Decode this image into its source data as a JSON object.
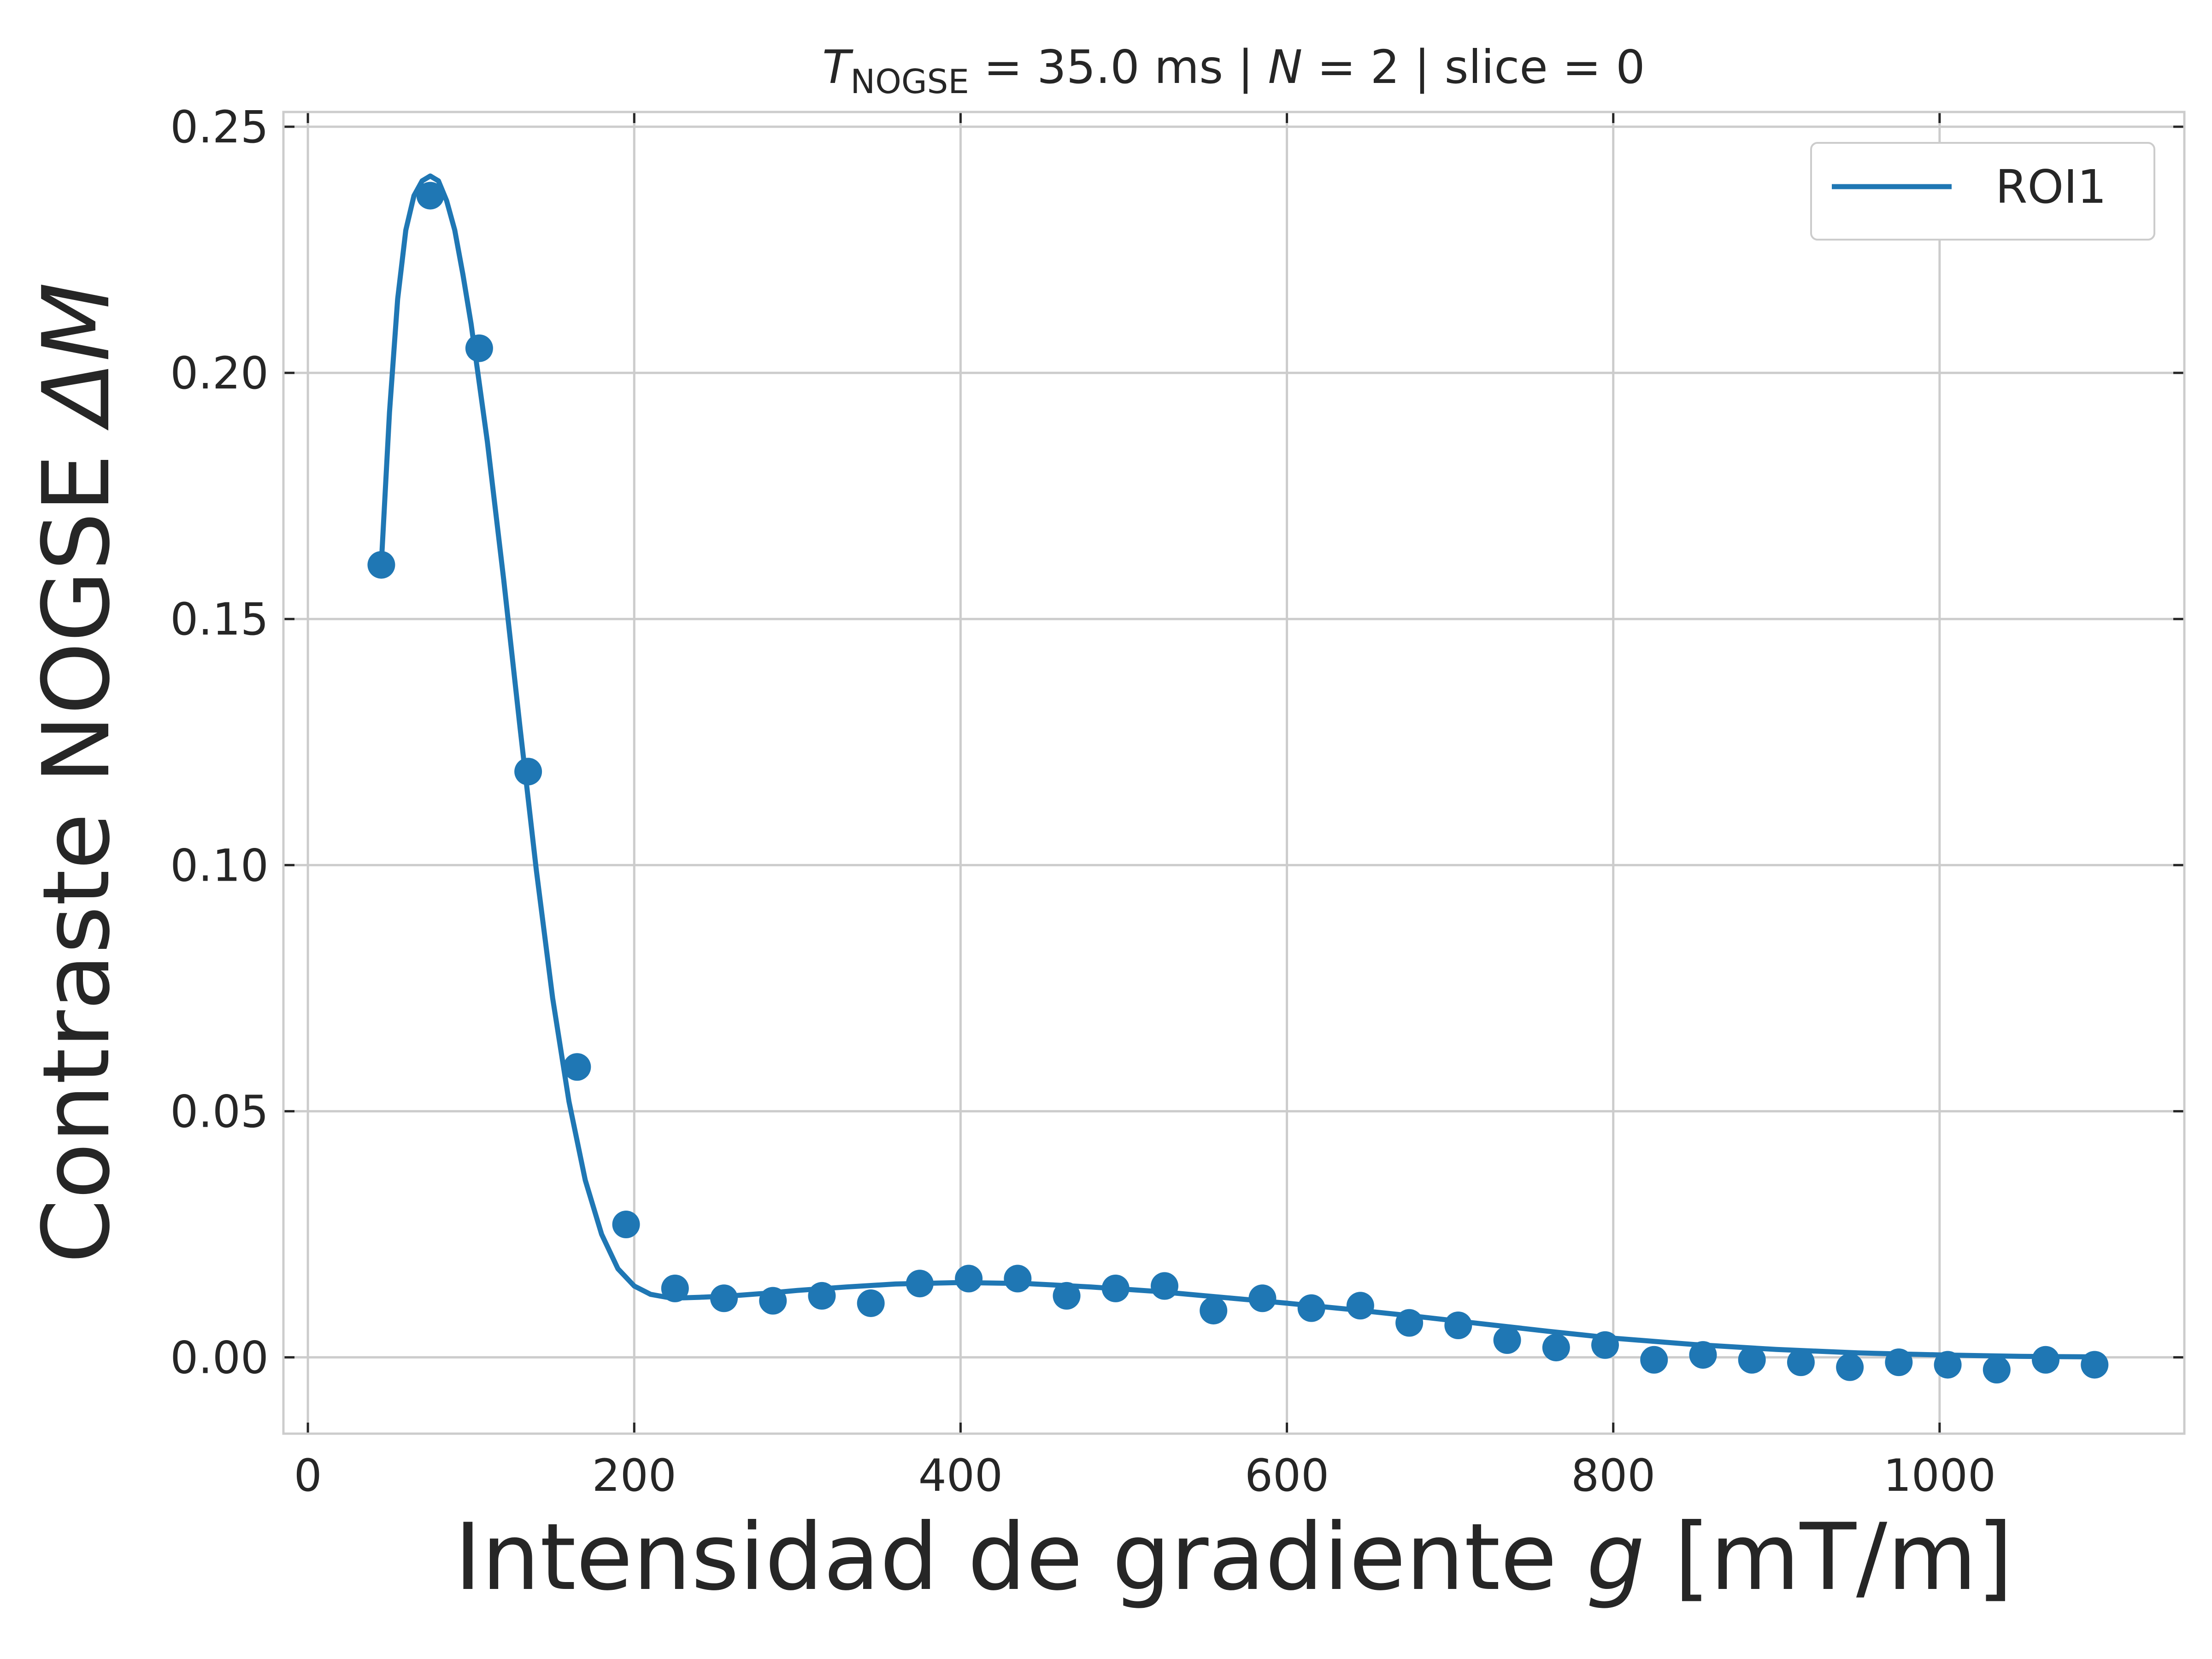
{
  "chart_data": {
    "type": "scatter",
    "title_main": "T",
    "title_sub": "NOGSE",
    "title_rest": " = 35.0 ms | ",
    "title_n": "N",
    "title_tail": " = 2 | slice = 0",
    "xlabel": "Intensidad de gradiente ",
    "xlabel_var": "g",
    "xlabel_unit": " [mT/m]",
    "ylabel": "Contraste NOGSE ",
    "ylabel_var": "ΔM",
    "xlim": [
      -15,
      1150
    ],
    "ylim": [
      -0.0155,
      0.253
    ],
    "xticks": [
      0,
      200,
      400,
      600,
      800,
      1000
    ],
    "xtick_labels": [
      "0",
      "200",
      "400",
      "600",
      "800",
      "1000"
    ],
    "yticks": [
      0,
      0.05,
      0.1,
      0.15,
      0.2,
      0.25
    ],
    "ytick_labels": [
      "0.00",
      "0.05",
      "0.10",
      "0.15",
      "0.20",
      "0.25"
    ],
    "grid": true,
    "legend_position": "top-right",
    "color": "#1f77b4",
    "series": [
      {
        "name": "ROI1",
        "kind": "line",
        "x": [
          45,
          50,
          55,
          60,
          65,
          70,
          75,
          80,
          85,
          90,
          95,
          100,
          110,
          120,
          130,
          140,
          150,
          160,
          170,
          180,
          190,
          200,
          210,
          220,
          230,
          240,
          260,
          280,
          300,
          330,
          360,
          400,
          440,
          480,
          520,
          560,
          600,
          640,
          680,
          720,
          760,
          800,
          850,
          900,
          950,
          1000,
          1050,
          1095
        ],
        "y": [
          0.161,
          0.192,
          0.215,
          0.229,
          0.236,
          0.239,
          0.24,
          0.239,
          0.235,
          0.229,
          0.22,
          0.21,
          0.186,
          0.158,
          0.128,
          0.099,
          0.073,
          0.052,
          0.036,
          0.025,
          0.018,
          0.0145,
          0.0128,
          0.0122,
          0.0121,
          0.0122,
          0.0125,
          0.013,
          0.0136,
          0.0143,
          0.0149,
          0.0152,
          0.015,
          0.0143,
          0.0134,
          0.0122,
          0.011,
          0.0097,
          0.0083,
          0.0068,
          0.0053,
          0.0039,
          0.0026,
          0.0016,
          0.0009,
          0.0005,
          0.0002,
          0.0001
        ]
      },
      {
        "name": "",
        "kind": "scatter",
        "x": [
          45,
          75,
          105,
          135,
          165,
          195,
          225,
          255,
          285,
          315,
          345,
          375,
          405,
          435,
          465,
          495,
          525,
          555,
          585,
          615,
          645,
          675,
          705,
          735,
          765,
          795,
          825,
          855,
          885,
          915,
          945,
          975,
          1005,
          1035,
          1065,
          1095
        ],
        "y": [
          0.161,
          0.236,
          0.205,
          0.119,
          0.059,
          0.027,
          0.014,
          0.012,
          0.0115,
          0.0125,
          0.011,
          0.015,
          0.016,
          0.016,
          0.0125,
          0.014,
          0.0145,
          0.0095,
          0.012,
          0.01,
          0.0105,
          0.007,
          0.0065,
          0.0035,
          0.002,
          0.0025,
          -0.0005,
          0.0005,
          -0.0005,
          -0.001,
          -0.002,
          -0.001,
          -0.0015,
          -0.0025,
          -0.0005,
          -0.0015
        ]
      }
    ]
  }
}
